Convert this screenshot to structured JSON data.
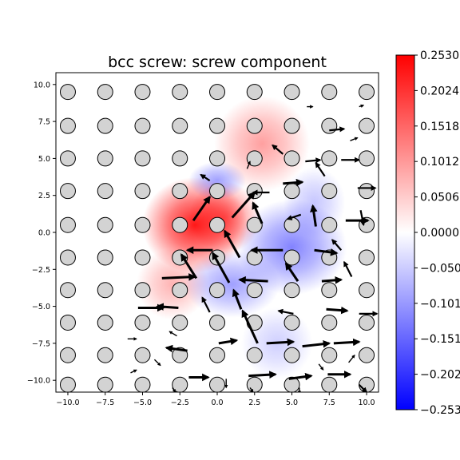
{
  "chart_data": {
    "type": "heatmap",
    "title": "bcc screw: screw component",
    "xlabel": "",
    "ylabel": "",
    "xlim": [
      -10.8,
      10.8
    ],
    "ylim": [
      -10.8,
      10.8
    ],
    "xticks": [
      -10.0,
      -7.5,
      -5.0,
      -2.5,
      0.0,
      2.5,
      5.0,
      7.5,
      10.0
    ],
    "xtick_labels": [
      "−10.0",
      "−7.5",
      "−5.0",
      "−2.5",
      "0.0",
      "2.5",
      "5.0",
      "7.5",
      "10.0"
    ],
    "yticks": [
      10.0,
      7.5,
      5.0,
      2.5,
      0.0,
      -2.5,
      -5.0,
      -7.5,
      -10.0
    ],
    "ytick_labels": [
      "10.0",
      "7.5",
      "5.0",
      "2.5",
      "0.0",
      "−2.5",
      "−5.0",
      "−7.5",
      "−10.0"
    ],
    "colorbar": {
      "range": [
        -0.253,
        0.253
      ],
      "colormap": "bwr",
      "ticks": [
        0.253,
        0.2024,
        0.1518,
        0.1012,
        0.0506,
        0.0,
        -0.0506,
        -0.1012,
        -0.1518,
        -0.2024,
        -0.253
      ],
      "tick_labels": [
        "0.2530",
        "0.2024",
        "0.1518",
        "0.1012",
        "0.0506",
        "0.0000",
        "−0.0506",
        "−0.1012",
        "−0.1518",
        "−0.2024",
        "−0.2530"
      ]
    },
    "field_blobs": [
      {
        "x": -1.5,
        "y": 0.5,
        "sx": 2.2,
        "sy": 2.0,
        "value": 0.24
      },
      {
        "x": 0.5,
        "y": 1.0,
        "sx": 1.5,
        "sy": 1.5,
        "value": 0.15
      },
      {
        "x": 3.0,
        "y": 6.0,
        "sx": 2.0,
        "sy": 2.0,
        "value": 0.1
      },
      {
        "x": -3.0,
        "y": -3.5,
        "sx": 1.5,
        "sy": 1.5,
        "value": 0.08
      },
      {
        "x": 0.0,
        "y": 3.5,
        "sx": 1.2,
        "sy": 0.8,
        "value": -0.1
      },
      {
        "x": 5.0,
        "y": -1.0,
        "sx": 2.3,
        "sy": 2.0,
        "value": -0.13
      },
      {
        "x": 1.0,
        "y": -3.5,
        "sx": 2.0,
        "sy": 1.4,
        "value": -0.1
      },
      {
        "x": 6.5,
        "y": 2.0,
        "sx": 1.3,
        "sy": 1.5,
        "value": -0.06
      },
      {
        "x": 4.0,
        "y": -7.5,
        "sx": 1.5,
        "sy": 1.5,
        "value": -0.05
      }
    ],
    "atoms": [
      {
        "x": -10.0,
        "y": 9.5
      },
      {
        "x": -7.5,
        "y": 9.5
      },
      {
        "x": -5.0,
        "y": 9.5
      },
      {
        "x": -2.5,
        "y": 9.5
      },
      {
        "x": 0.0,
        "y": 9.5
      },
      {
        "x": 2.5,
        "y": 9.5
      },
      {
        "x": 5.0,
        "y": 9.5
      },
      {
        "x": 7.5,
        "y": 9.5
      },
      {
        "x": 10.0,
        "y": 9.5
      },
      {
        "x": -10.0,
        "y": 7.2
      },
      {
        "x": -7.5,
        "y": 7.2
      },
      {
        "x": -5.0,
        "y": 7.2
      },
      {
        "x": -2.5,
        "y": 7.2
      },
      {
        "x": 0.0,
        "y": 7.2
      },
      {
        "x": 2.5,
        "y": 7.2
      },
      {
        "x": 5.0,
        "y": 7.2
      },
      {
        "x": 7.5,
        "y": 7.2
      },
      {
        "x": 10.0,
        "y": 7.2
      },
      {
        "x": -10.0,
        "y": 5.0
      },
      {
        "x": -7.5,
        "y": 5.0
      },
      {
        "x": -5.0,
        "y": 5.0
      },
      {
        "x": -2.5,
        "y": 5.0
      },
      {
        "x": 0.0,
        "y": 5.0
      },
      {
        "x": 2.5,
        "y": 5.0
      },
      {
        "x": 5.0,
        "y": 5.0
      },
      {
        "x": 7.5,
        "y": 5.0
      },
      {
        "x": 10.0,
        "y": 5.0
      },
      {
        "x": -10.0,
        "y": 2.8
      },
      {
        "x": -7.5,
        "y": 2.8
      },
      {
        "x": -5.0,
        "y": 2.8
      },
      {
        "x": -2.5,
        "y": 2.8
      },
      {
        "x": 0.0,
        "y": 2.8
      },
      {
        "x": 2.5,
        "y": 2.8
      },
      {
        "x": 5.0,
        "y": 2.8
      },
      {
        "x": 7.5,
        "y": 2.8
      },
      {
        "x": 10.0,
        "y": 2.8
      },
      {
        "x": -10.0,
        "y": 0.5
      },
      {
        "x": -7.5,
        "y": 0.5
      },
      {
        "x": -5.0,
        "y": 0.5
      },
      {
        "x": -2.5,
        "y": 0.5
      },
      {
        "x": 0.0,
        "y": 0.5
      },
      {
        "x": 2.5,
        "y": 0.5
      },
      {
        "x": 5.0,
        "y": 0.5
      },
      {
        "x": 7.5,
        "y": 0.5
      },
      {
        "x": 10.0,
        "y": 0.5
      },
      {
        "x": -10.0,
        "y": -1.7
      },
      {
        "x": -7.5,
        "y": -1.7
      },
      {
        "x": -5.0,
        "y": -1.7
      },
      {
        "x": -2.5,
        "y": -1.7
      },
      {
        "x": 0.0,
        "y": -1.7
      },
      {
        "x": 2.5,
        "y": -1.7
      },
      {
        "x": 5.0,
        "y": -1.7
      },
      {
        "x": 7.5,
        "y": -1.7
      },
      {
        "x": 10.0,
        "y": -1.7
      },
      {
        "x": -10.0,
        "y": -3.9
      },
      {
        "x": -7.5,
        "y": -3.9
      },
      {
        "x": -5.0,
        "y": -3.9
      },
      {
        "x": -2.5,
        "y": -3.9
      },
      {
        "x": 0.0,
        "y": -3.9
      },
      {
        "x": 2.5,
        "y": -3.9
      },
      {
        "x": 5.0,
        "y": -3.9
      },
      {
        "x": 7.5,
        "y": -3.9
      },
      {
        "x": 10.0,
        "y": -3.9
      },
      {
        "x": -10.0,
        "y": -6.1
      },
      {
        "x": -7.5,
        "y": -6.1
      },
      {
        "x": -5.0,
        "y": -6.1
      },
      {
        "x": -2.5,
        "y": -6.1
      },
      {
        "x": 0.0,
        "y": -6.1
      },
      {
        "x": 2.5,
        "y": -6.1
      },
      {
        "x": 5.0,
        "y": -6.1
      },
      {
        "x": 7.5,
        "y": -6.1
      },
      {
        "x": 10.0,
        "y": -6.1
      },
      {
        "x": -10.0,
        "y": -8.3
      },
      {
        "x": -7.5,
        "y": -8.3
      },
      {
        "x": -5.0,
        "y": -8.3
      },
      {
        "x": -2.5,
        "y": -8.3
      },
      {
        "x": 0.0,
        "y": -8.3
      },
      {
        "x": 2.5,
        "y": -8.3
      },
      {
        "x": 5.0,
        "y": -8.3
      },
      {
        "x": 7.5,
        "y": -8.3
      },
      {
        "x": 10.0,
        "y": -8.3
      },
      {
        "x": -10.0,
        "y": -10.3
      },
      {
        "x": -7.5,
        "y": -10.3
      },
      {
        "x": -5.0,
        "y": -10.3
      },
      {
        "x": -2.5,
        "y": -10.3
      },
      {
        "x": 0.0,
        "y": -10.3
      },
      {
        "x": 2.5,
        "y": -10.3
      },
      {
        "x": 5.0,
        "y": -10.3
      },
      {
        "x": 7.5,
        "y": -10.3
      },
      {
        "x": 10.0,
        "y": -10.3
      }
    ],
    "arrows": [
      {
        "x": -3.7,
        "y": -3.1,
        "dx": 2.2,
        "dy": 0.1
      },
      {
        "x": -1.4,
        "y": -3.1,
        "dx": -1.0,
        "dy": 1.6
      },
      {
        "x": -0.3,
        "y": -1.2,
        "dx": -1.7,
        "dy": 0.0
      },
      {
        "x": 0.8,
        "y": -3.4,
        "dx": -1.1,
        "dy": 2.0
      },
      {
        "x": -1.6,
        "y": 0.8,
        "dx": 1.1,
        "dy": 1.6
      },
      {
        "x": 1.5,
        "y": -1.7,
        "dx": -1.0,
        "dy": 1.8
      },
      {
        "x": 3.4,
        "y": -3.3,
        "dx": -1.9,
        "dy": 0.1
      },
      {
        "x": 1.0,
        "y": 1.0,
        "dx": 1.5,
        "dy": 1.7
      },
      {
        "x": 4.4,
        "y": -1.2,
        "dx": -2.1,
        "dy": 0.0
      },
      {
        "x": 1.6,
        "y": -5.2,
        "dx": -0.5,
        "dy": 1.3
      },
      {
        "x": 2.7,
        "y": -7.5,
        "dx": -1.0,
        "dy": 2.2
      },
      {
        "x": -2.6,
        "y": -5.1,
        "dx": -1.4,
        "dy": 0.1
      },
      {
        "x": -0.5,
        "y": -5.4,
        "dx": -0.5,
        "dy": 1.0
      },
      {
        "x": 5.1,
        "y": -5.5,
        "dx": -1.0,
        "dy": 0.2
      },
      {
        "x": 5.4,
        "y": -3.3,
        "dx": -0.8,
        "dy": 1.2
      },
      {
        "x": 7.0,
        "y": -3.3,
        "dx": 1.3,
        "dy": 0.1
      },
      {
        "x": 7.3,
        "y": -5.2,
        "dx": 1.4,
        "dy": -0.1
      },
      {
        "x": 9.5,
        "y": -5.5,
        "dx": 1.2,
        "dy": 0.0
      },
      {
        "x": 9.0,
        "y": -3.0,
        "dx": -0.5,
        "dy": 1.0
      },
      {
        "x": 3.0,
        "y": 0.6,
        "dx": -0.6,
        "dy": 1.4
      },
      {
        "x": 3.5,
        "y": 2.7,
        "dx": -1.1,
        "dy": 0.0
      },
      {
        "x": 5.6,
        "y": 1.2,
        "dx": -0.9,
        "dy": -0.3
      },
      {
        "x": 4.4,
        "y": 3.3,
        "dx": 1.3,
        "dy": 0.1
      },
      {
        "x": 6.5,
        "y": -1.2,
        "dx": 1.5,
        "dy": -0.2
      },
      {
        "x": 6.6,
        "y": 0.4,
        "dx": -0.2,
        "dy": 1.4
      },
      {
        "x": 8.6,
        "y": 0.8,
        "dx": 1.5,
        "dy": 0.0
      },
      {
        "x": 8.3,
        "y": -1.2,
        "dx": -0.6,
        "dy": 0.7
      },
      {
        "x": 9.4,
        "y": 3.0,
        "dx": 1.2,
        "dy": 0.0
      },
      {
        "x": 7.2,
        "y": 3.8,
        "dx": -0.6,
        "dy": 0.9
      },
      {
        "x": 4.4,
        "y": 5.3,
        "dx": -0.7,
        "dy": 0.6
      },
      {
        "x": 5.9,
        "y": 4.8,
        "dx": 1.0,
        "dy": 0.1
      },
      {
        "x": 8.3,
        "y": 4.9,
        "dx": 1.2,
        "dy": 0.0
      },
      {
        "x": 7.5,
        "y": 6.9,
        "dx": 1.0,
        "dy": 0.1
      },
      {
        "x": 2.1,
        "y": -9.7,
        "dx": 1.8,
        "dy": 0.1
      },
      {
        "x": -2.0,
        "y": -8.0,
        "dx": -1.4,
        "dy": 0.2
      },
      {
        "x": 0.1,
        "y": -7.5,
        "dx": 1.2,
        "dy": 0.2
      },
      {
        "x": 3.3,
        "y": -7.5,
        "dx": 1.8,
        "dy": 0.1
      },
      {
        "x": 5.7,
        "y": -7.7,
        "dx": 1.8,
        "dy": 0.2
      },
      {
        "x": 7.8,
        "y": -7.5,
        "dx": 1.7,
        "dy": 0.1
      },
      {
        "x": 4.8,
        "y": -9.9,
        "dx": 1.5,
        "dy": 0.2
      },
      {
        "x": 7.4,
        "y": -9.6,
        "dx": 1.5,
        "dy": 0.0
      },
      {
        "x": -5.3,
        "y": -5.1,
        "dx": 1.7,
        "dy": 0.0
      },
      {
        "x": -1.9,
        "y": -9.8,
        "dx": 1.3,
        "dy": 0.0
      },
      {
        "x": -6.0,
        "y": -7.2,
        "dx": 0.6,
        "dy": 0.0
      },
      {
        "x": -4.2,
        "y": -8.6,
        "dx": 0.4,
        "dy": -0.4
      },
      {
        "x": -5.8,
        "y": -9.5,
        "dx": 0.4,
        "dy": 0.2
      },
      {
        "x": 0.6,
        "y": -9.9,
        "dx": 0.0,
        "dy": -0.6
      },
      {
        "x": 2.2,
        "y": -10.5,
        "dx": 0.2,
        "dy": -0.3
      },
      {
        "x": 5.5,
        "y": -10.5,
        "dx": 0.0,
        "dy": -0.4
      },
      {
        "x": 9.5,
        "y": -10.3,
        "dx": 0.5,
        "dy": -0.5
      },
      {
        "x": -0.5,
        "y": 3.5,
        "dx": -0.6,
        "dy": 0.4
      },
      {
        "x": 2.0,
        "y": 4.3,
        "dx": 0.2,
        "dy": 0.5
      },
      {
        "x": 8.9,
        "y": 6.2,
        "dx": 0.5,
        "dy": 0.2
      },
      {
        "x": 6.0,
        "y": 8.5,
        "dx": 0.4,
        "dy": 0.0
      },
      {
        "x": 9.5,
        "y": 8.5,
        "dx": 0.3,
        "dy": 0.1
      },
      {
        "x": 9.6,
        "y": 1.5,
        "dx": 0.2,
        "dy": -1.0
      },
      {
        "x": -2.7,
        "y": -7.0,
        "dx": -0.5,
        "dy": 0.3
      },
      {
        "x": -3.0,
        "y": -10.5,
        "dx": 0.2,
        "dy": -0.3
      },
      {
        "x": 8.8,
        "y": -8.8,
        "dx": 0.4,
        "dy": 0.5
      },
      {
        "x": 6.8,
        "y": -8.9,
        "dx": 0.3,
        "dy": -0.4
      }
    ]
  }
}
